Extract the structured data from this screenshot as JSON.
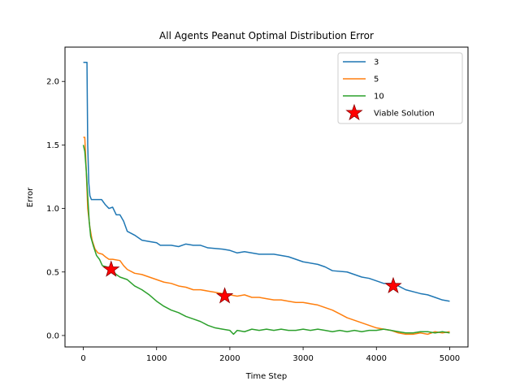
{
  "chart_data": {
    "type": "line",
    "title": "All Agents Peanut Optimal Distribution Error",
    "xlabel": "Time Step",
    "ylabel": "Error",
    "xlim": [
      -250,
      5250
    ],
    "ylim": [
      -0.09,
      2.27
    ],
    "xticks": [
      0,
      1000,
      2000,
      3000,
      4000,
      5000
    ],
    "xtick_labels": [
      "0",
      "1000",
      "2000",
      "3000",
      "4000",
      "5000"
    ],
    "yticks": [
      0.0,
      0.5,
      1.0,
      1.5,
      2.0
    ],
    "ytick_labels": [
      "0.0",
      "0.5",
      "1.0",
      "1.5",
      "2.0"
    ],
    "grid": false,
    "legend_position": "upper right",
    "series": [
      {
        "name": "3",
        "color": "#1f77b4",
        "points": [
          [
            0,
            2.15
          ],
          [
            50,
            2.15
          ],
          [
            60,
            1.5
          ],
          [
            75,
            1.2
          ],
          [
            90,
            1.1
          ],
          [
            110,
            1.07
          ],
          [
            250,
            1.07
          ],
          [
            300,
            1.03
          ],
          [
            350,
            1.0
          ],
          [
            400,
            1.01
          ],
          [
            450,
            0.95
          ],
          [
            500,
            0.95
          ],
          [
            550,
            0.9
          ],
          [
            600,
            0.82
          ],
          [
            700,
            0.79
          ],
          [
            800,
            0.75
          ],
          [
            900,
            0.74
          ],
          [
            1000,
            0.73
          ],
          [
            1050,
            0.71
          ],
          [
            1200,
            0.71
          ],
          [
            1300,
            0.7
          ],
          [
            1400,
            0.72
          ],
          [
            1500,
            0.71
          ],
          [
            1600,
            0.71
          ],
          [
            1700,
            0.69
          ],
          [
            1900,
            0.68
          ],
          [
            2000,
            0.67
          ],
          [
            2100,
            0.65
          ],
          [
            2200,
            0.66
          ],
          [
            2400,
            0.64
          ],
          [
            2600,
            0.64
          ],
          [
            2800,
            0.62
          ],
          [
            2900,
            0.6
          ],
          [
            3000,
            0.58
          ],
          [
            3200,
            0.56
          ],
          [
            3300,
            0.54
          ],
          [
            3400,
            0.51
          ],
          [
            3600,
            0.5
          ],
          [
            3700,
            0.48
          ],
          [
            3800,
            0.46
          ],
          [
            3900,
            0.45
          ],
          [
            4000,
            0.43
          ],
          [
            4100,
            0.41
          ],
          [
            4200,
            0.41
          ],
          [
            4300,
            0.39
          ],
          [
            4400,
            0.36
          ],
          [
            4600,
            0.33
          ],
          [
            4700,
            0.32
          ],
          [
            4800,
            0.3
          ],
          [
            4900,
            0.28
          ],
          [
            5000,
            0.27
          ]
        ]
      },
      {
        "name": "5",
        "color": "#ff7f0e",
        "points": [
          [
            0,
            1.56
          ],
          [
            20,
            1.56
          ],
          [
            40,
            1.3
          ],
          [
            60,
            1.0
          ],
          [
            90,
            0.85
          ],
          [
            120,
            0.75
          ],
          [
            160,
            0.68
          ],
          [
            200,
            0.65
          ],
          [
            260,
            0.64
          ],
          [
            300,
            0.62
          ],
          [
            350,
            0.6
          ],
          [
            400,
            0.6
          ],
          [
            500,
            0.59
          ],
          [
            550,
            0.55
          ],
          [
            600,
            0.52
          ],
          [
            700,
            0.49
          ],
          [
            800,
            0.48
          ],
          [
            900,
            0.46
          ],
          [
            1000,
            0.44
          ],
          [
            1100,
            0.42
          ],
          [
            1200,
            0.41
          ],
          [
            1300,
            0.39
          ],
          [
            1400,
            0.38
          ],
          [
            1500,
            0.36
          ],
          [
            1600,
            0.36
          ],
          [
            1700,
            0.35
          ],
          [
            1800,
            0.34
          ],
          [
            1900,
            0.33
          ],
          [
            2000,
            0.32
          ],
          [
            2100,
            0.31
          ],
          [
            2200,
            0.32
          ],
          [
            2300,
            0.3
          ],
          [
            2400,
            0.3
          ],
          [
            2500,
            0.29
          ],
          [
            2600,
            0.28
          ],
          [
            2700,
            0.28
          ],
          [
            2800,
            0.27
          ],
          [
            2900,
            0.26
          ],
          [
            3000,
            0.26
          ],
          [
            3100,
            0.25
          ],
          [
            3200,
            0.24
          ],
          [
            3300,
            0.22
          ],
          [
            3400,
            0.2
          ],
          [
            3500,
            0.17
          ],
          [
            3600,
            0.14
          ],
          [
            3700,
            0.12
          ],
          [
            3800,
            0.1
          ],
          [
            3900,
            0.08
          ],
          [
            4000,
            0.06
          ],
          [
            4100,
            0.05
          ],
          [
            4200,
            0.04
          ],
          [
            4300,
            0.02
          ],
          [
            4400,
            0.01
          ],
          [
            4500,
            0.01
          ],
          [
            4600,
            0.02
          ],
          [
            4700,
            0.01
          ],
          [
            4800,
            0.03
          ],
          [
            4900,
            0.02
          ],
          [
            5000,
            0.03
          ]
        ]
      },
      {
        "name": "10",
        "color": "#2ca02c",
        "points": [
          [
            0,
            1.5
          ],
          [
            20,
            1.45
          ],
          [
            40,
            1.3
          ],
          [
            60,
            1.1
          ],
          [
            80,
            0.9
          ],
          [
            100,
            0.78
          ],
          [
            140,
            0.7
          ],
          [
            180,
            0.63
          ],
          [
            220,
            0.6
          ],
          [
            260,
            0.55
          ],
          [
            320,
            0.54
          ],
          [
            380,
            0.52
          ],
          [
            450,
            0.48
          ],
          [
            500,
            0.46
          ],
          [
            600,
            0.44
          ],
          [
            700,
            0.39
          ],
          [
            800,
            0.36
          ],
          [
            900,
            0.32
          ],
          [
            1000,
            0.27
          ],
          [
            1100,
            0.23
          ],
          [
            1200,
            0.2
          ],
          [
            1300,
            0.18
          ],
          [
            1400,
            0.15
          ],
          [
            1500,
            0.13
          ],
          [
            1600,
            0.11
          ],
          [
            1700,
            0.08
          ],
          [
            1800,
            0.06
          ],
          [
            1900,
            0.05
          ],
          [
            2000,
            0.04
          ],
          [
            2050,
            0.01
          ],
          [
            2100,
            0.04
          ],
          [
            2200,
            0.03
          ],
          [
            2300,
            0.05
          ],
          [
            2400,
            0.04
          ],
          [
            2500,
            0.05
          ],
          [
            2600,
            0.04
          ],
          [
            2700,
            0.05
          ],
          [
            2800,
            0.04
          ],
          [
            2900,
            0.04
          ],
          [
            3000,
            0.05
          ],
          [
            3100,
            0.04
          ],
          [
            3200,
            0.05
          ],
          [
            3300,
            0.04
          ],
          [
            3400,
            0.03
          ],
          [
            3500,
            0.04
          ],
          [
            3600,
            0.03
          ],
          [
            3700,
            0.04
          ],
          [
            3800,
            0.03
          ],
          [
            3900,
            0.04
          ],
          [
            4000,
            0.04
          ],
          [
            4100,
            0.05
          ],
          [
            4200,
            0.04
          ],
          [
            4300,
            0.03
          ],
          [
            4400,
            0.02
          ],
          [
            4500,
            0.02
          ],
          [
            4600,
            0.03
          ],
          [
            4700,
            0.03
          ],
          [
            4800,
            0.02
          ],
          [
            4900,
            0.03
          ],
          [
            5000,
            0.02
          ]
        ]
      }
    ],
    "markers": {
      "name": "Viable Solution",
      "color": "#ff0000",
      "edgecolor": "#8b0000",
      "points": [
        [
          380,
          0.52
        ],
        [
          1930,
          0.31
        ],
        [
          4230,
          0.39
        ]
      ]
    }
  }
}
